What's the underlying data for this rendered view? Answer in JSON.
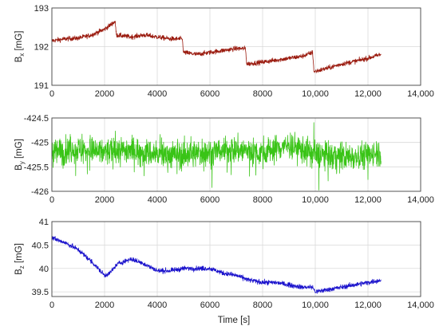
{
  "xlabel": "Time [s]",
  "chart_data": [
    {
      "type": "line",
      "ylabel_main": "B",
      "ylabel_sub": "x",
      "ylabel_unit": " [mG]",
      "xlim": [
        0,
        14000
      ],
      "ylim": [
        191,
        193
      ],
      "xticks": [
        0,
        2000,
        4000,
        6000,
        8000,
        10000,
        12000,
        14000
      ],
      "xtick_labels": [
        "0",
        "2000",
        "4000",
        "6000",
        "8000",
        "10,000",
        "12,000",
        "14,000"
      ],
      "yticks": [
        191,
        192,
        193
      ],
      "ytick_labels": [
        "191",
        "192",
        "193"
      ],
      "grid": true,
      "series": [
        {
          "color": "#9b1c10",
          "noise": 0.03,
          "x": [
            0,
            500,
            1000,
            1500,
            2000,
            2300,
            2400,
            2450,
            3000,
            3500,
            4000,
            4500,
            4950,
            5000,
            5500,
            6000,
            6500,
            7000,
            7350,
            7400,
            8000,
            8500,
            9000,
            9500,
            9900,
            9950,
            10500,
            11000,
            11500,
            12000,
            12500
          ],
          "y": [
            192.15,
            192.2,
            192.22,
            192.3,
            192.45,
            192.6,
            192.65,
            192.3,
            192.25,
            192.3,
            192.25,
            192.2,
            192.2,
            191.85,
            191.8,
            191.85,
            191.9,
            191.95,
            191.95,
            191.55,
            191.6,
            191.65,
            191.7,
            191.75,
            191.85,
            191.35,
            191.45,
            191.55,
            191.62,
            191.7,
            191.8
          ]
        }
      ]
    },
    {
      "type": "line",
      "ylabel_main": "B",
      "ylabel_sub": "y",
      "ylabel_unit": " [mG]",
      "xlim": [
        0,
        14000
      ],
      "ylim": [
        -426,
        -424.5
      ],
      "xticks": [
        0,
        2000,
        4000,
        6000,
        8000,
        10000,
        12000,
        14000
      ],
      "xtick_labels": [
        "0",
        "2000",
        "4000",
        "6000",
        "8000",
        "10,000",
        "12,000",
        "14,000"
      ],
      "yticks": [
        -426,
        -425.5,
        -425,
        -424.5
      ],
      "ytick_labels": [
        "-426",
        "-425.5",
        "-425",
        "-424.5"
      ],
      "grid": true,
      "series": [
        {
          "color": "#39c416",
          "noise": 0.14,
          "x": [
            0,
            1000,
            2000,
            3000,
            4000,
            5000,
            6000,
            7000,
            8000,
            9000,
            10000,
            11000,
            12000,
            12500
          ],
          "y": [
            -425.2,
            -425.15,
            -425.2,
            -425.15,
            -425.25,
            -425.25,
            -425.2,
            -425.15,
            -425.2,
            -425.05,
            -425.25,
            -425.3,
            -425.25,
            -425.2
          ]
        }
      ]
    },
    {
      "type": "line",
      "ylabel_main": "B",
      "ylabel_sub": "z",
      "ylabel_unit": " [mG]",
      "xlim": [
        0,
        14000
      ],
      "ylim": [
        39.4,
        41
      ],
      "xticks": [
        0,
        2000,
        4000,
        6000,
        8000,
        10000,
        12000,
        14000
      ],
      "xtick_labels": [
        "0",
        "2000",
        "4000",
        "6000",
        "8000",
        "10,000",
        "12,000",
        "14,000"
      ],
      "yticks": [
        39.5,
        40,
        40.5,
        41
      ],
      "ytick_labels": [
        "39.5",
        "40",
        "40.5",
        "41"
      ],
      "grid": true,
      "series": [
        {
          "color": "#1a12cc",
          "noise": 0.025,
          "x": [
            0,
            500,
            1000,
            1500,
            2000,
            2200,
            2500,
            3000,
            3500,
            4000,
            4500,
            5000,
            5500,
            6000,
            6500,
            7000,
            7500,
            8000,
            8500,
            9000,
            9500,
            9900,
            10000,
            10500,
            11000,
            11500,
            12000,
            12500
          ],
          "y": [
            40.65,
            40.55,
            40.4,
            40.15,
            39.85,
            39.9,
            40.1,
            40.2,
            40.1,
            39.95,
            39.95,
            40.0,
            40.0,
            40.0,
            39.9,
            39.85,
            39.75,
            39.7,
            39.7,
            39.65,
            39.6,
            39.6,
            39.5,
            39.55,
            39.6,
            39.65,
            39.7,
            39.75
          ]
        }
      ]
    }
  ]
}
